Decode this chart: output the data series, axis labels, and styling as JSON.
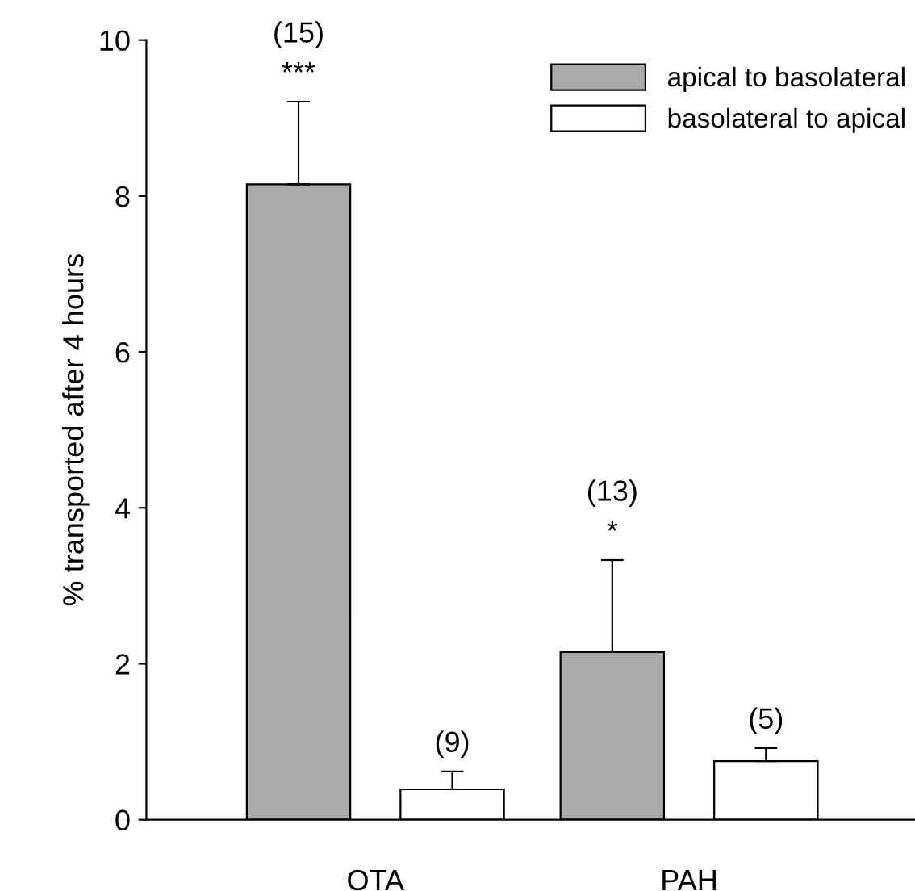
{
  "chart_data": {
    "type": "bar",
    "ylabel": "% transported after 4 hours",
    "categories": [
      "OTA",
      "PAH"
    ],
    "series": [
      {
        "name": "apical to basolateral",
        "color": "#a9a9a9",
        "values": [
          8.15,
          2.15
        ],
        "errors": [
          [
            8.15,
            9.21
          ],
          [
            2.15,
            3.33
          ]
        ]
      },
      {
        "name": "basolateral to apical",
        "color": "#ffffff",
        "values": [
          0.39,
          0.75
        ],
        "errors": [
          [
            0.39,
            0.62
          ],
          [
            0.75,
            0.92
          ]
        ]
      }
    ],
    "annotations": [
      "(15)\n***",
      "(9)",
      "(13)\n*",
      "(5)"
    ],
    "ylim": [
      0,
      10
    ],
    "yticks": [
      0,
      2,
      4,
      6,
      8,
      10
    ],
    "grid": false,
    "legend": "top right"
  }
}
